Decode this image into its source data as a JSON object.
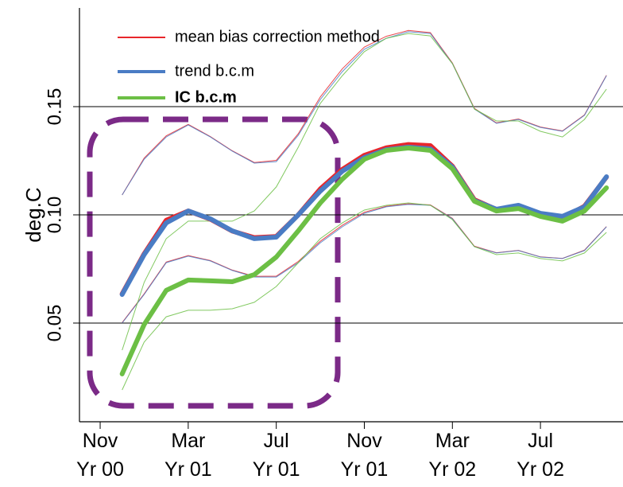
{
  "chart_data": {
    "type": "line",
    "y_label": "deg.C",
    "x": [
      1,
      2,
      3,
      4,
      5,
      6,
      7,
      8,
      9,
      10,
      11,
      12,
      13,
      14,
      15,
      16,
      17,
      18,
      19,
      20,
      21,
      22,
      23
    ],
    "xlim": [
      -0.94,
      23.75
    ],
    "xticks": [
      {
        "value": 0,
        "label": "Nov\nYr 00"
      },
      {
        "value": 4,
        "label": "Mar\nYr 01"
      },
      {
        "value": 8,
        "label": "Jul\nYr 01"
      },
      {
        "value": 12,
        "label": "Nov\nYr 01"
      },
      {
        "value": 16,
        "label": "Mar\nYr 02"
      },
      {
        "value": 20,
        "label": "Jul\nYr 02"
      }
    ],
    "ylim": [
      0.0044,
      0.1956
    ],
    "yticks": [
      0.05,
      {
        "value": 0.1,
        "label": "0.10"
      },
      0.15
    ],
    "grid": true,
    "legend": "top-left",
    "series": [
      {
        "name": "mean bias correction method",
        "color": "#e8262b",
        "values": [
          0.0635,
          0.082,
          0.0975,
          0.1018,
          0.098,
          0.0925,
          0.0895,
          0.09,
          0.1,
          0.112,
          0.121,
          0.1275,
          0.131,
          0.1325,
          0.132,
          0.1225,
          0.107,
          0.1025,
          0.104,
          0.1005,
          0.0985,
          0.104,
          0.1175
        ],
        "upper": [
          0.1092,
          0.1262,
          0.1365,
          0.1418,
          0.1362,
          0.1296,
          0.1242,
          0.1252,
          0.1375,
          0.1545,
          0.1675,
          0.1775,
          0.1825,
          0.1852,
          0.1842,
          0.1702,
          0.1492,
          0.1425,
          0.1443,
          0.1406,
          0.1388,
          0.1462,
          0.1645
        ],
        "lower": [
          0.0502,
          0.0635,
          0.0782,
          0.0812,
          0.0789,
          0.0745,
          0.0716,
          0.0717,
          0.0785,
          0.0878,
          0.0952,
          0.1012,
          0.104,
          0.1051,
          0.1046,
          0.0984,
          0.0855,
          0.0825,
          0.0836,
          0.0806,
          0.0799,
          0.0837,
          0.0946
        ]
      },
      {
        "name": "trend b.c.m",
        "color": "#4a7cc4",
        "values": [
          0.0632,
          0.0816,
          0.0963,
          0.1018,
          0.0982,
          0.0926,
          0.089,
          0.0897,
          0.1,
          0.111,
          0.1202,
          0.1265,
          0.1301,
          0.1313,
          0.1305,
          0.1221,
          0.1066,
          0.1026,
          0.1044,
          0.1007,
          0.0993,
          0.1037,
          0.1176
        ],
        "upper": [
          0.1092,
          0.1257,
          0.136,
          0.1415,
          0.136,
          0.1294,
          0.1239,
          0.1246,
          0.1368,
          0.1533,
          0.1662,
          0.1765,
          0.1816,
          0.1846,
          0.1838,
          0.1699,
          0.1489,
          0.1423,
          0.1441,
          0.1404,
          0.1386,
          0.146,
          0.1643
        ],
        "lower": [
          0.05,
          0.0632,
          0.0779,
          0.0809,
          0.0787,
          0.0743,
          0.0713,
          0.0713,
          0.0779,
          0.0871,
          0.0945,
          0.1007,
          0.1037,
          0.1048,
          0.1044,
          0.0982,
          0.0853,
          0.0824,
          0.0835,
          0.0805,
          0.0798,
          0.0835,
          0.0945
        ]
      },
      {
        "name": "IC b.c.m",
        "color": "#6cbf45",
        "values": [
          0.0265,
          0.0493,
          0.0651,
          0.0699,
          0.0695,
          0.0691,
          0.0724,
          0.0805,
          0.0926,
          0.1055,
          0.1165,
          0.1257,
          0.1298,
          0.1309,
          0.1298,
          0.1213,
          0.1063,
          0.1018,
          0.1029,
          0.0993,
          0.0971,
          0.1018,
          0.1125
        ],
        "upper": [
          0.0375,
          0.0688,
          0.089,
          0.0971,
          0.0971,
          0.0971,
          0.1018,
          0.1129,
          0.1313,
          0.1515,
          0.1643,
          0.1754,
          0.1816,
          0.1838,
          0.1827,
          0.1699,
          0.1489,
          0.1434,
          0.1434,
          0.1386,
          0.136,
          0.1441,
          0.1581
        ],
        "lower": [
          0.0191,
          0.0412,
          0.0529,
          0.0559,
          0.0559,
          0.0566,
          0.0596,
          0.0669,
          0.0779,
          0.089,
          0.0963,
          0.1022,
          0.1044,
          0.1055,
          0.1044,
          0.0978,
          0.0853,
          0.0816,
          0.0824,
          0.0798,
          0.0787,
          0.0824,
          0.0919
        ]
      }
    ]
  }
}
